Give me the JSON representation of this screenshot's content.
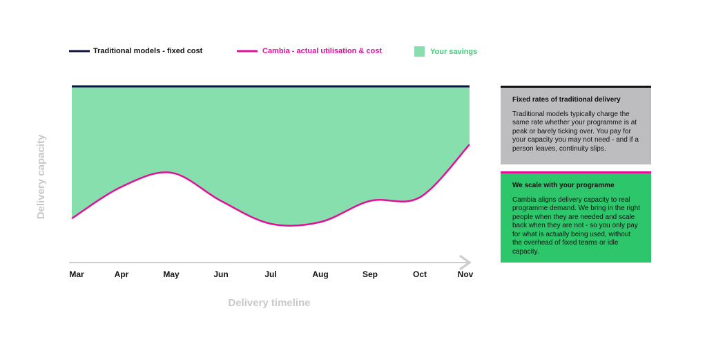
{
  "chart_data": {
    "type": "line",
    "categories": [
      "Mar",
      "Apr",
      "May",
      "Jun",
      "Jul",
      "Aug",
      "Sep",
      "Oct",
      "Nov"
    ],
    "series": [
      {
        "name": "Traditional models - fixed cost",
        "color": "#0f1140",
        "values": [
          100,
          100,
          100,
          100,
          100,
          100,
          100,
          100,
          100
        ]
      },
      {
        "name": "Cambia - actual utilisation & cost",
        "color": "#e0109a",
        "values": [
          25,
          43,
          51,
          35,
          22,
          23,
          35,
          37,
          67
        ]
      }
    ],
    "savings_label": "Your savings",
    "savings_color": "#86dfad",
    "ylim": [
      0,
      100
    ],
    "ylabel": "Delivery capacity",
    "xlabel": "Delivery timeline",
    "annotations": [
      {
        "title": "Fixed rates of traditional delivery",
        "text": "Traditional models typically charge the same rate whether your programme is at peak or barely ticking over. You pay for your capacity you may not need - and if a person leaves, continuity slips.",
        "color": "#bdbdc0",
        "border": "#111111"
      },
      {
        "title": "We scale with your programme",
        "text": "Cambia aligns delivery capacity to real programme demand. We bring in the right people when they are needed and scale back when they are not - so you only pay for what is actually being used, without the overhead of fixed teams or idle capacity.",
        "color": "#2ec66b",
        "border": "#e0109a"
      }
    ]
  }
}
